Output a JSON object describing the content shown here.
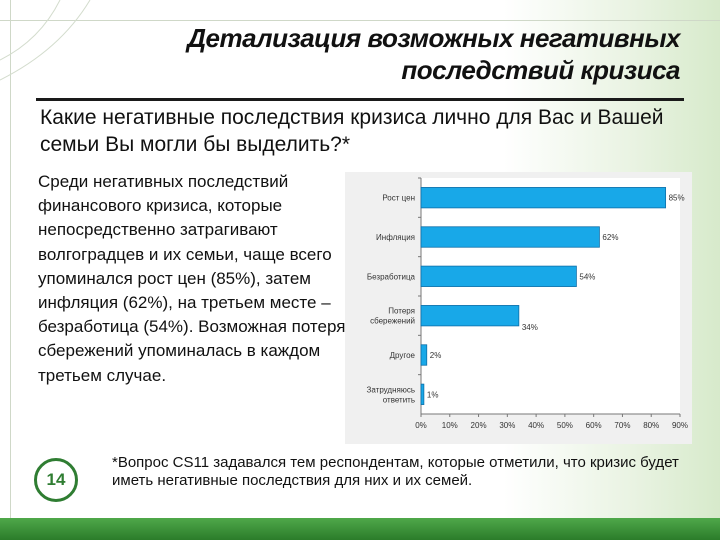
{
  "title_line1": "Детализация возможных негативных",
  "title_line2": "последствий кризиса",
  "question": "Какие негативные последствия кризиса лично для Вас и Вашей семьи Вы могли бы выделить?*",
  "description": "Среди негативных последствий финансового кризиса, которые непосредственно затрагивают волгоградцев и их семьи, чаще всего упоминался рост цен (85%), затем инфляция (62%), на третьем месте – безработица (54%). Возможная потеря сбережений упоминалась в каждом третьем случае.",
  "footnote": "*Вопрос CS11 задавался тем респондентам, которые отметили, что кризис будет иметь негативные последствия для них и их семей.",
  "page_number": "14",
  "colors": {
    "bar": "#18a8e8",
    "bar_border": "#0f6fa8",
    "accent": "#2f7d32",
    "footer": "#3c9a3a"
  },
  "chart_data": {
    "type": "bar",
    "orientation": "horizontal",
    "categories": [
      [
        "Рост цен"
      ],
      [
        "Инфляция"
      ],
      [
        "Безработица"
      ],
      [
        "Потеря",
        "сбережений"
      ],
      [
        "Другое"
      ],
      [
        "Затрудняюсь",
        "ответить"
      ]
    ],
    "values": [
      85,
      62,
      54,
      34,
      2,
      1
    ],
    "value_labels": [
      "85%",
      "62%",
      "54%",
      "34%",
      "2%",
      "1%"
    ],
    "xlim": [
      0,
      90
    ],
    "xticks": [
      "0%",
      "10%",
      "20%",
      "30%",
      "40%",
      "50%",
      "60%",
      "70%",
      "80%",
      "90%"
    ],
    "grid": false,
    "legend": "none"
  }
}
